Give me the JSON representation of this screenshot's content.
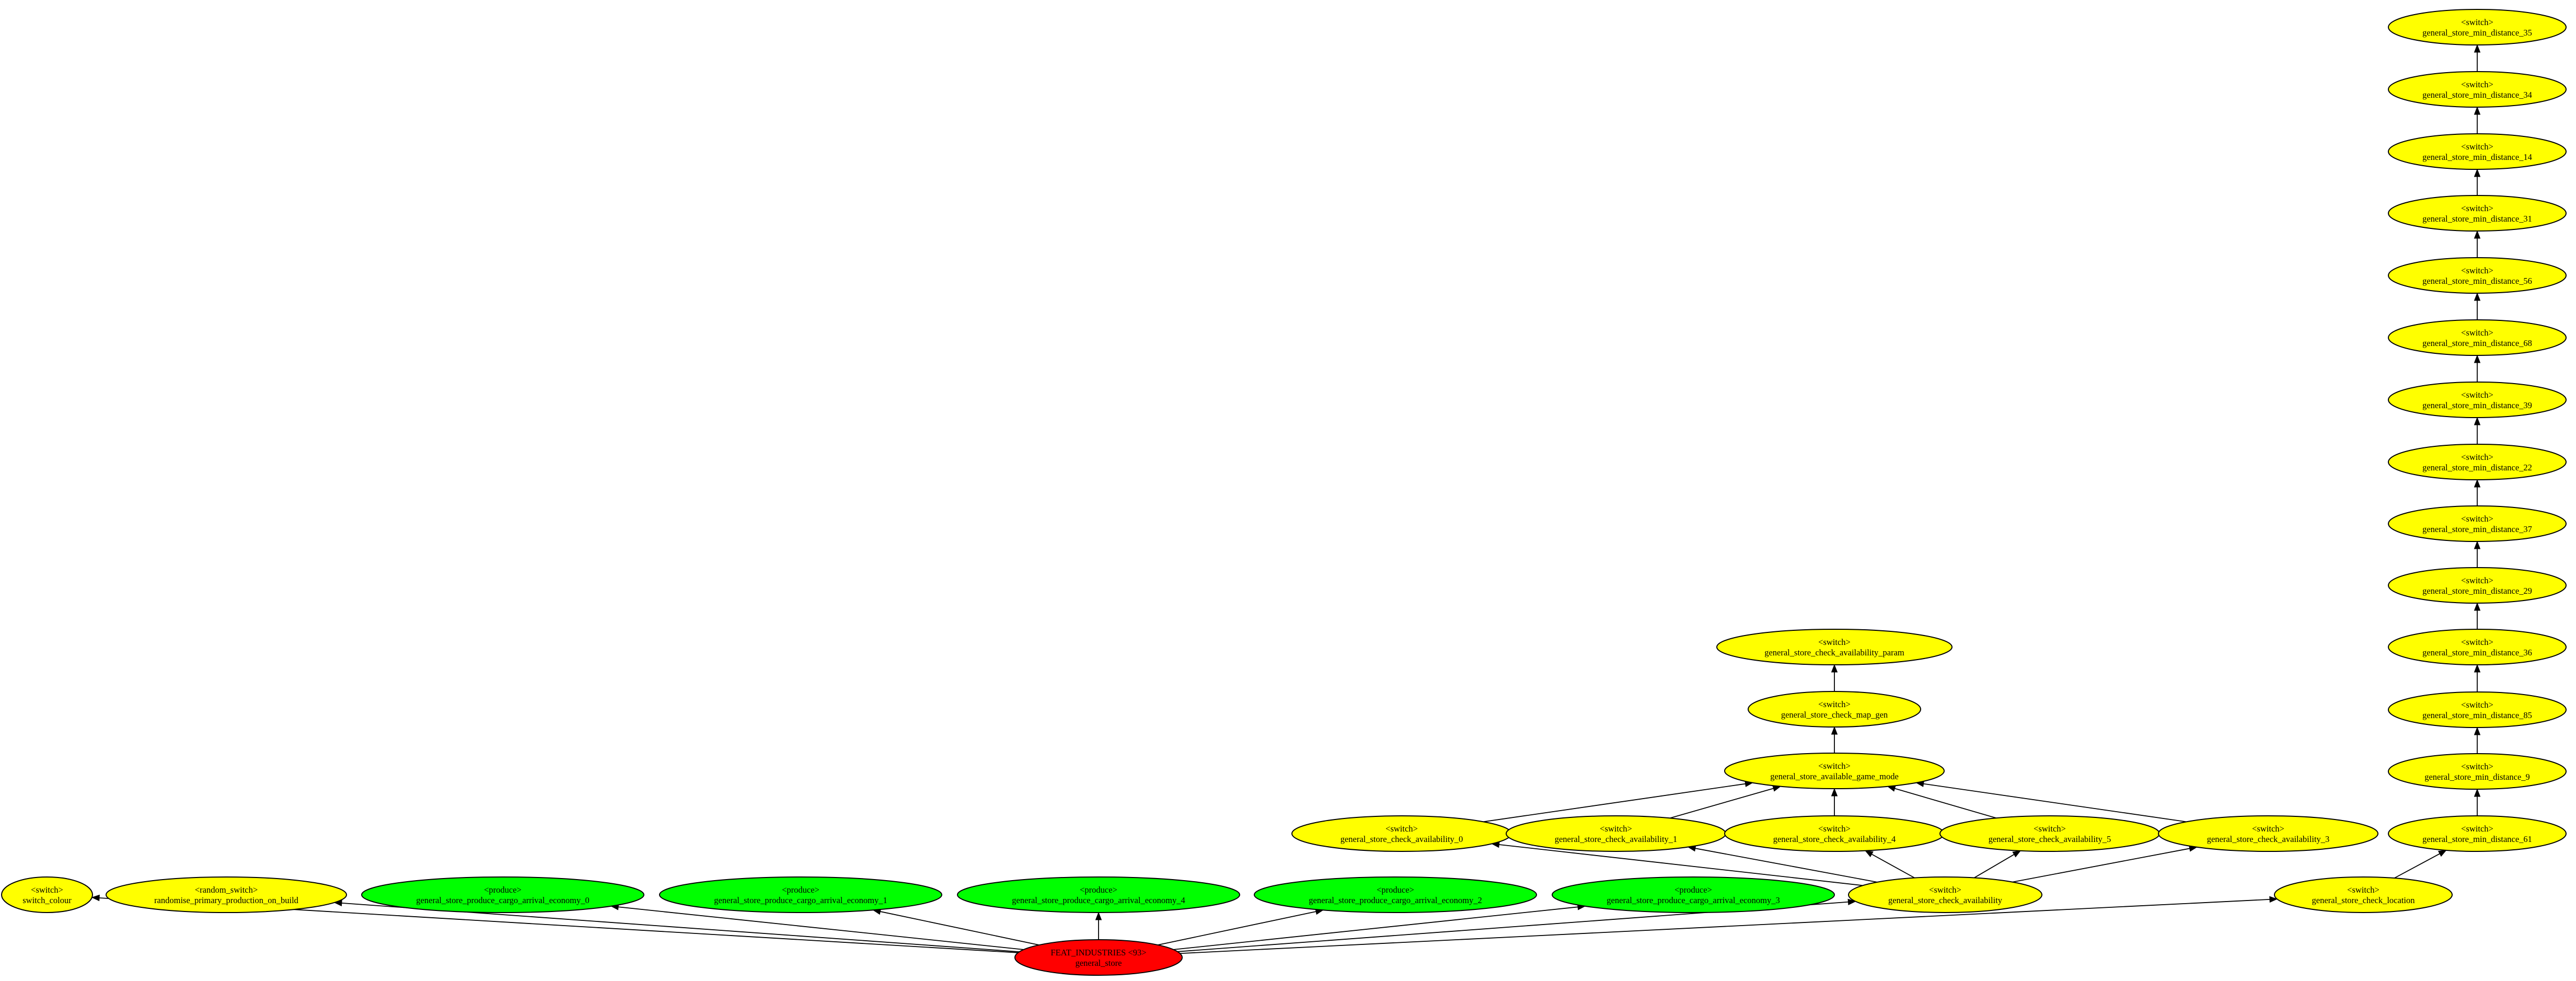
{
  "colors": {
    "switch": "#ffff00",
    "produce": "#00ff00",
    "root": "#ff0000"
  },
  "nodes": [
    {
      "id": "switch_colour",
      "kind": "switch",
      "line1": "<switch>",
      "line2": "switch_colour"
    },
    {
      "id": "randomise_primary_production_on_build",
      "kind": "switch",
      "line1": "<random_switch>",
      "line2": "randomise_primary_production_on_build"
    },
    {
      "id": "produce_0",
      "kind": "produce",
      "line1": "<produce>",
      "line2": "general_store_produce_cargo_arrival_economy_0"
    },
    {
      "id": "produce_1",
      "kind": "produce",
      "line1": "<produce>",
      "line2": "general_store_produce_cargo_arrival_economy_1"
    },
    {
      "id": "produce_4",
      "kind": "produce",
      "line1": "<produce>",
      "line2": "general_store_produce_cargo_arrival_economy_4"
    },
    {
      "id": "produce_2",
      "kind": "produce",
      "line1": "<produce>",
      "line2": "general_store_produce_cargo_arrival_economy_2"
    },
    {
      "id": "produce_3",
      "kind": "produce",
      "line1": "<produce>",
      "line2": "general_store_produce_cargo_arrival_economy_3"
    },
    {
      "id": "check_availability",
      "kind": "switch",
      "line1": "<switch>",
      "line2": "general_store_check_availability"
    },
    {
      "id": "check_location",
      "kind": "switch",
      "line1": "<switch>",
      "line2": "general_store_check_location"
    },
    {
      "id": "root",
      "kind": "root",
      "line1": "FEAT_INDUSTRIES <93>",
      "line2": "general_store"
    },
    {
      "id": "ca_0",
      "kind": "switch",
      "line1": "<switch>",
      "line2": "general_store_check_availability_0"
    },
    {
      "id": "ca_1",
      "kind": "switch",
      "line1": "<switch>",
      "line2": "general_store_check_availability_1"
    },
    {
      "id": "ca_4",
      "kind": "switch",
      "line1": "<switch>",
      "line2": "general_store_check_availability_4"
    },
    {
      "id": "ca_5",
      "kind": "switch",
      "line1": "<switch>",
      "line2": "general_store_check_availability_5"
    },
    {
      "id": "ca_3",
      "kind": "switch",
      "line1": "<switch>",
      "line2": "general_store_check_availability_3"
    },
    {
      "id": "game_mode",
      "kind": "switch",
      "line1": "<switch>",
      "line2": "general_store_available_game_mode"
    },
    {
      "id": "map_gen",
      "kind": "switch",
      "line1": "<switch>",
      "line2": "general_store_check_map_gen"
    },
    {
      "id": "ca_param",
      "kind": "switch",
      "line1": "<switch>",
      "line2": "general_store_check_availability_param"
    },
    {
      "id": "md_61",
      "kind": "switch",
      "line1": "<switch>",
      "line2": "general_store_min_distance_61"
    },
    {
      "id": "md_9",
      "kind": "switch",
      "line1": "<switch>",
      "line2": "general_store_min_distance_9"
    },
    {
      "id": "md_85",
      "kind": "switch",
      "line1": "<switch>",
      "line2": "general_store_min_distance_85"
    },
    {
      "id": "md_36",
      "kind": "switch",
      "line1": "<switch>",
      "line2": "general_store_min_distance_36"
    },
    {
      "id": "md_29",
      "kind": "switch",
      "line1": "<switch>",
      "line2": "general_store_min_distance_29"
    },
    {
      "id": "md_37",
      "kind": "switch",
      "line1": "<switch>",
      "line2": "general_store_min_distance_37"
    },
    {
      "id": "md_22",
      "kind": "switch",
      "line1": "<switch>",
      "line2": "general_store_min_distance_22"
    },
    {
      "id": "md_39",
      "kind": "switch",
      "line1": "<switch>",
      "line2": "general_store_min_distance_39"
    },
    {
      "id": "md_68",
      "kind": "switch",
      "line1": "<switch>",
      "line2": "general_store_min_distance_68"
    },
    {
      "id": "md_56",
      "kind": "switch",
      "line1": "<switch>",
      "line2": "general_store_min_distance_56"
    },
    {
      "id": "md_31",
      "kind": "switch",
      "line1": "<switch>",
      "line2": "general_store_min_distance_31"
    },
    {
      "id": "md_14",
      "kind": "switch",
      "line1": "<switch>",
      "line2": "general_store_min_distance_14"
    },
    {
      "id": "md_34",
      "kind": "switch",
      "line1": "<switch>",
      "line2": "general_store_min_distance_34"
    },
    {
      "id": "md_35",
      "kind": "switch",
      "line1": "<switch>",
      "line2": "general_store_min_distance_35"
    }
  ],
  "edges": [
    {
      "from": "root",
      "to": "switch_colour"
    },
    {
      "from": "root",
      "to": "randomise_primary_production_on_build"
    },
    {
      "from": "root",
      "to": "produce_0"
    },
    {
      "from": "root",
      "to": "produce_1"
    },
    {
      "from": "root",
      "to": "produce_4"
    },
    {
      "from": "root",
      "to": "produce_2"
    },
    {
      "from": "root",
      "to": "produce_3"
    },
    {
      "from": "root",
      "to": "check_availability"
    },
    {
      "from": "root",
      "to": "check_location"
    },
    {
      "from": "check_availability",
      "to": "ca_0"
    },
    {
      "from": "check_availability",
      "to": "ca_1"
    },
    {
      "from": "check_availability",
      "to": "ca_4"
    },
    {
      "from": "check_availability",
      "to": "ca_5"
    },
    {
      "from": "check_availability",
      "to": "ca_3"
    },
    {
      "from": "ca_0",
      "to": "game_mode"
    },
    {
      "from": "ca_1",
      "to": "game_mode"
    },
    {
      "from": "ca_4",
      "to": "game_mode"
    },
    {
      "from": "ca_5",
      "to": "game_mode"
    },
    {
      "from": "ca_3",
      "to": "game_mode"
    },
    {
      "from": "game_mode",
      "to": "map_gen"
    },
    {
      "from": "map_gen",
      "to": "ca_param"
    },
    {
      "from": "check_location",
      "to": "md_61"
    },
    {
      "from": "md_61",
      "to": "md_9"
    },
    {
      "from": "md_9",
      "to": "md_85"
    },
    {
      "from": "md_85",
      "to": "md_36"
    },
    {
      "from": "md_36",
      "to": "md_29"
    },
    {
      "from": "md_29",
      "to": "md_37"
    },
    {
      "from": "md_37",
      "to": "md_22"
    },
    {
      "from": "md_22",
      "to": "md_39"
    },
    {
      "from": "md_39",
      "to": "md_68"
    },
    {
      "from": "md_68",
      "to": "md_56"
    },
    {
      "from": "md_56",
      "to": "md_31"
    },
    {
      "from": "md_31",
      "to": "md_14"
    },
    {
      "from": "md_14",
      "to": "md_34"
    },
    {
      "from": "md_34",
      "to": "md_35"
    }
  ]
}
